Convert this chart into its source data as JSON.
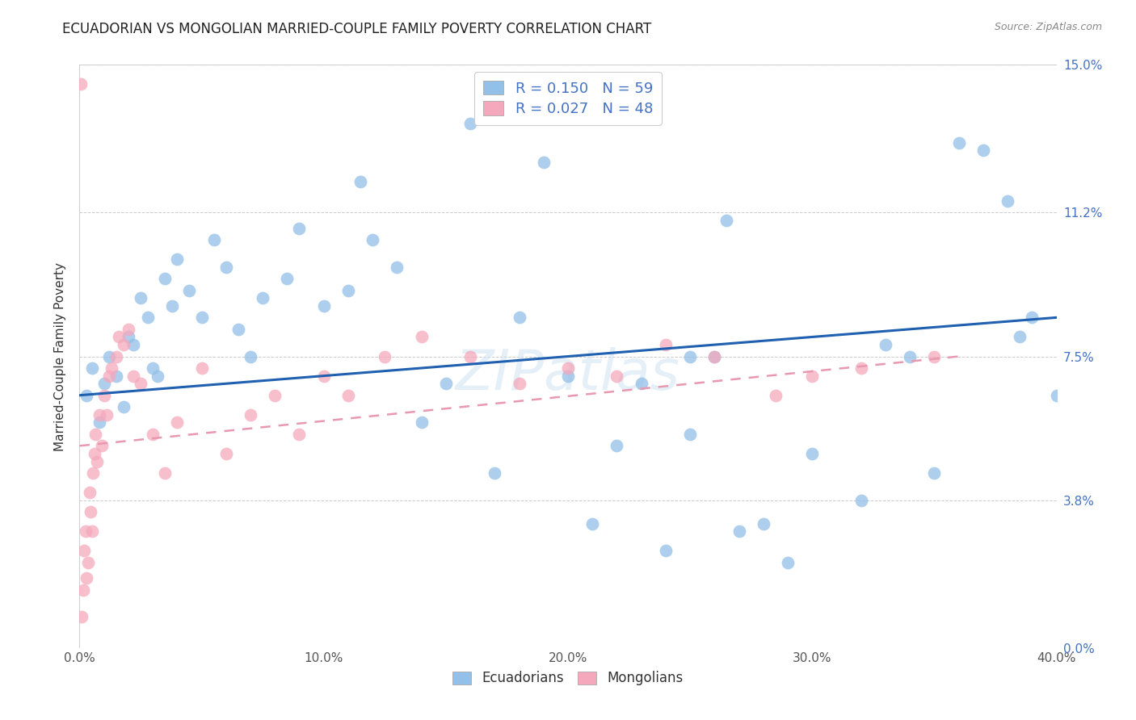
{
  "title": "ECUADORIAN VS MONGOLIAN MARRIED-COUPLE FAMILY POVERTY CORRELATION CHART",
  "source": "Source: ZipAtlas.com",
  "ylabel": "Married-Couple Family Poverty",
  "xlim": [
    0.0,
    40.0
  ],
  "ylim": [
    0.0,
    15.0
  ],
  "x_tick_vals": [
    0.0,
    10.0,
    20.0,
    30.0,
    40.0
  ],
  "y_tick_vals": [
    0.0,
    3.8,
    7.5,
    11.2,
    15.0
  ],
  "ecuadorians_R": "0.150",
  "ecuadorians_N": "59",
  "mongolians_R": "0.027",
  "mongolians_N": "48",
  "ecu_color": "#92c0e8",
  "mon_color": "#f5a8bc",
  "trend_ecu_color": "#2060b0",
  "trend_mon_color": "#e899b0",
  "watermark": "ZIPatlas",
  "ecu_x": [
    0.3,
    0.5,
    0.8,
    1.0,
    1.2,
    1.5,
    1.8,
    2.0,
    2.2,
    2.5,
    2.8,
    3.0,
    3.2,
    3.5,
    3.8,
    4.0,
    4.5,
    5.0,
    5.5,
    6.0,
    6.5,
    7.0,
    7.5,
    8.5,
    9.0,
    10.0,
    11.0,
    11.5,
    12.0,
    13.0,
    14.0,
    15.0,
    16.0,
    17.0,
    18.0,
    19.0,
    20.0,
    21.0,
    22.0,
    23.0,
    24.0,
    25.0,
    26.0,
    27.0,
    28.0,
    29.0,
    30.0,
    32.0,
    33.0,
    34.0,
    35.0,
    36.0,
    37.0,
    38.0,
    39.0,
    40.0,
    25.0,
    26.5,
    38.5
  ],
  "ecu_y": [
    6.5,
    7.2,
    5.8,
    6.8,
    7.5,
    7.0,
    6.2,
    8.0,
    7.8,
    9.0,
    8.5,
    7.2,
    7.0,
    9.5,
    8.8,
    10.0,
    9.2,
    8.5,
    10.5,
    9.8,
    8.2,
    7.5,
    9.0,
    9.5,
    10.8,
    8.8,
    9.2,
    12.0,
    10.5,
    9.8,
    5.8,
    6.8,
    13.5,
    4.5,
    8.5,
    12.5,
    7.0,
    3.2,
    5.2,
    6.8,
    2.5,
    5.5,
    7.5,
    3.0,
    3.2,
    2.2,
    5.0,
    3.8,
    7.8,
    7.5,
    4.5,
    13.0,
    12.8,
    11.5,
    8.5,
    6.5,
    7.5,
    11.0,
    8.0
  ],
  "mon_x": [
    0.05,
    0.1,
    0.15,
    0.2,
    0.25,
    0.3,
    0.35,
    0.4,
    0.45,
    0.5,
    0.55,
    0.6,
    0.65,
    0.7,
    0.8,
    0.9,
    1.0,
    1.1,
    1.2,
    1.3,
    1.5,
    1.6,
    1.8,
    2.0,
    2.2,
    2.5,
    3.0,
    3.5,
    4.0,
    5.0,
    6.0,
    7.0,
    8.0,
    9.0,
    10.0,
    11.0,
    12.5,
    14.0,
    16.0,
    18.0,
    20.0,
    22.0,
    24.0,
    26.0,
    28.5,
    30.0,
    32.0,
    35.0
  ],
  "mon_y": [
    14.5,
    0.8,
    1.5,
    2.5,
    3.0,
    1.8,
    2.2,
    4.0,
    3.5,
    3.0,
    4.5,
    5.0,
    5.5,
    4.8,
    6.0,
    5.2,
    6.5,
    6.0,
    7.0,
    7.2,
    7.5,
    8.0,
    7.8,
    8.2,
    7.0,
    6.8,
    5.5,
    4.5,
    5.8,
    7.2,
    5.0,
    6.0,
    6.5,
    5.5,
    7.0,
    6.5,
    7.5,
    8.0,
    7.5,
    6.8,
    7.2,
    7.0,
    7.8,
    7.5,
    6.5,
    7.0,
    7.2,
    7.5
  ],
  "ecu_trend_x0": 0.0,
  "ecu_trend_y0": 6.5,
  "ecu_trend_x1": 40.0,
  "ecu_trend_y1": 8.5,
  "mon_trend_x0": 0.0,
  "mon_trend_y0": 5.2,
  "mon_trend_x1": 36.0,
  "mon_trend_y1": 7.5
}
